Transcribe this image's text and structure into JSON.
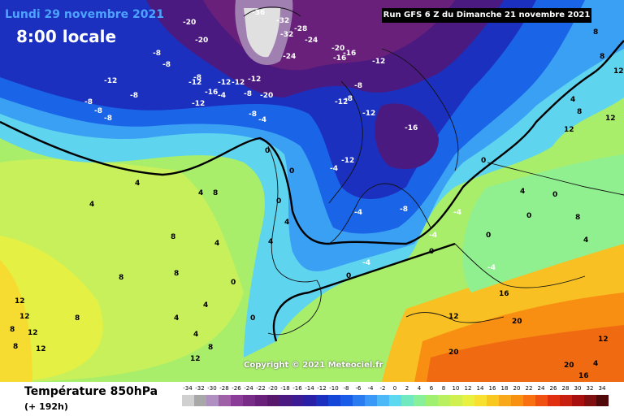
{
  "header": {
    "date": "Lundi 29 novembre 2021",
    "time": "8:00 locale",
    "run": "Run GFS 6 Z du Dimanche 21 novembre 2021"
  },
  "footer": {
    "parameter": "Température 850hPa",
    "lead": "(+ 192h)",
    "copyright": "Copyright © 2021 Meteociel.fr"
  },
  "legend": {
    "values": [
      "-34",
      "-32",
      "-30",
      "-28",
      "-26",
      "-24",
      "-22",
      "-20",
      "-18",
      "-16",
      "-14",
      "-12",
      "-10",
      "-8",
      "-6",
      "-4",
      "-2",
      "0",
      "2",
      "4",
      "6",
      "8",
      "10",
      "12",
      "14",
      "16",
      "18",
      "20",
      "22",
      "24",
      "26",
      "28",
      "30",
      "32",
      "34"
    ],
    "colors": [
      "#d0d0d0",
      "#a8a8a8",
      "#b090c0",
      "#a060a8",
      "#8a3c98",
      "#782c88",
      "#68207a",
      "#58186c",
      "#4a1a80",
      "#3c1c94",
      "#2a20a8",
      "#1c30c0",
      "#1446d8",
      "#1a5ce8",
      "#2a7af0",
      "#3a98f6",
      "#4cb8f8",
      "#5cd8f0",
      "#70e8c0",
      "#88f098",
      "#a0f070",
      "#b8f060",
      "#d0f050",
      "#e8f040",
      "#f8e030",
      "#f8c820",
      "#f8a818",
      "#f89010",
      "#f87010",
      "#f05010",
      "#e03010",
      "#c82010",
      "#a81010",
      "#801010",
      "#500808"
    ]
  },
  "map_labels": [
    "-20",
    "-20",
    "-36",
    "-32",
    "-28",
    "-32",
    "-24",
    "-24",
    "-20",
    "-16",
    "-16",
    "-12",
    "-8",
    "-8",
    "-8",
    "-12",
    "-8",
    "-8",
    "-12",
    "-12",
    "-16",
    "-12",
    "-4",
    "-20",
    "-8",
    "-12",
    "-8",
    "-12",
    "-8",
    "-8",
    "-8",
    "-12",
    "-12",
    "-16",
    "-8",
    "-4",
    "0",
    "0",
    "-12",
    "-4",
    "-8",
    "-4",
    "-4",
    "-4",
    "0",
    "0",
    "0",
    "4",
    "4",
    "4",
    "4",
    "4",
    "8",
    "8",
    "8",
    "8",
    "0",
    "0",
    "4",
    "4",
    "4",
    "8",
    "12",
    "12",
    "12",
    "12",
    "8",
    "8",
    "12",
    "12",
    "16",
    "20",
    "20",
    "20",
    "16",
    "12",
    "4",
    "0",
    "0",
    "4",
    "8",
    "12",
    "12",
    "12",
    "8",
    "8",
    "8",
    "4",
    "0",
    "0",
    "-4",
    "-4",
    "4",
    "4",
    "8"
  ]
}
